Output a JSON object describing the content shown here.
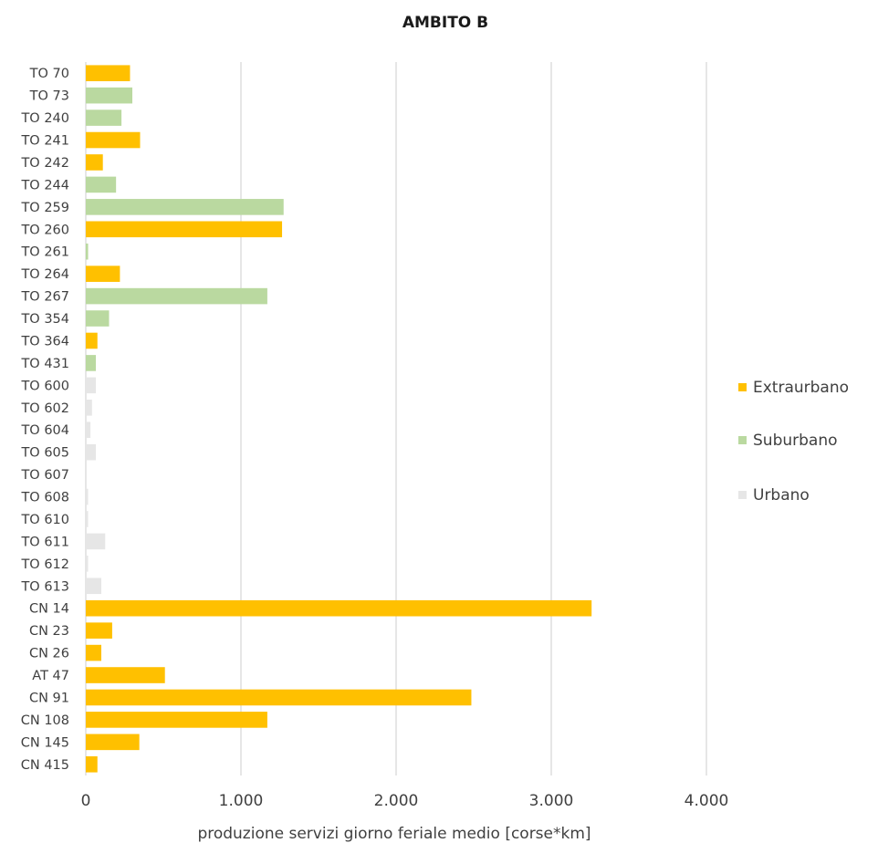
{
  "chart_data": {
    "type": "bar",
    "orientation": "horizontal",
    "title": "AMBITO B",
    "xlabel": "produzione servizi giorno feriale medio [corse*km]",
    "ylabel": "",
    "xlim": [
      0,
      4000
    ],
    "xticks": [
      0,
      1000,
      2000,
      3000,
      4000
    ],
    "xtick_labels": [
      "0",
      "1.000",
      "2.000",
      "3.000",
      "4.000"
    ],
    "grid": true,
    "legend_position": "right",
    "series": [
      {
        "name": "Extraurbano",
        "color": "#ffc000"
      },
      {
        "name": "Suburbano",
        "color": "#bad9a0"
      },
      {
        "name": "Urbano",
        "color": "#e6e6e6"
      }
    ],
    "bars": [
      {
        "label": "TO 70",
        "value": 285,
        "series": "Extraurbano"
      },
      {
        "label": "TO 73",
        "value": 300,
        "series": "Suburbano"
      },
      {
        "label": "TO 240",
        "value": 230,
        "series": "Suburbano"
      },
      {
        "label": "TO 241",
        "value": 350,
        "series": "Extraurbano"
      },
      {
        "label": "TO 242",
        "value": 110,
        "series": "Extraurbano"
      },
      {
        "label": "TO 244",
        "value": 195,
        "series": "Suburbano"
      },
      {
        "label": "TO 259",
        "value": 1275,
        "series": "Suburbano"
      },
      {
        "label": "TO 260",
        "value": 1265,
        "series": "Extraurbano"
      },
      {
        "label": "TO 261",
        "value": 15,
        "series": "Suburbano"
      },
      {
        "label": "TO 264",
        "value": 220,
        "series": "Extraurbano"
      },
      {
        "label": "TO 267",
        "value": 1170,
        "series": "Suburbano"
      },
      {
        "label": "TO 354",
        "value": 150,
        "series": "Suburbano"
      },
      {
        "label": "TO 364",
        "value": 75,
        "series": "Extraurbano"
      },
      {
        "label": "TO 431",
        "value": 65,
        "series": "Suburbano"
      },
      {
        "label": "TO 600",
        "value": 65,
        "series": "Urbano"
      },
      {
        "label": "TO 602",
        "value": 40,
        "series": "Urbano"
      },
      {
        "label": "TO 604",
        "value": 30,
        "series": "Urbano"
      },
      {
        "label": "TO 605",
        "value": 65,
        "series": "Urbano"
      },
      {
        "label": "TO 607",
        "value": 0,
        "series": "Urbano"
      },
      {
        "label": "TO 608",
        "value": 15,
        "series": "Urbano"
      },
      {
        "label": "TO 610",
        "value": 15,
        "series": "Urbano"
      },
      {
        "label": "TO 611",
        "value": 125,
        "series": "Urbano"
      },
      {
        "label": "TO 612",
        "value": 15,
        "series": "Urbano"
      },
      {
        "label": "TO 613",
        "value": 100,
        "series": "Urbano"
      },
      {
        "label": "CN 14",
        "value": 3260,
        "series": "Extraurbano"
      },
      {
        "label": "CN 23",
        "value": 170,
        "series": "Extraurbano"
      },
      {
        "label": "CN 26",
        "value": 100,
        "series": "Extraurbano"
      },
      {
        "label": "AT 47",
        "value": 510,
        "series": "Extraurbano"
      },
      {
        "label": "CN 91",
        "value": 2485,
        "series": "Extraurbano"
      },
      {
        "label": "CN 108",
        "value": 1170,
        "series": "Extraurbano"
      },
      {
        "label": "CN 145",
        "value": 345,
        "series": "Extraurbano"
      },
      {
        "label": "CN 415",
        "value": 75,
        "series": "Extraurbano"
      }
    ]
  }
}
